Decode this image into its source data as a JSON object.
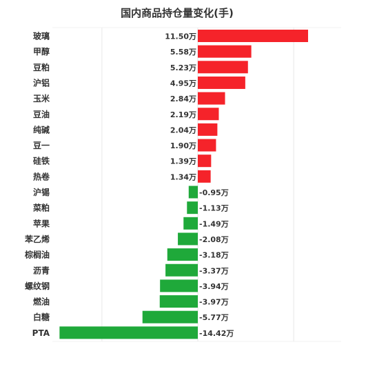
{
  "chart_data": {
    "type": "bar",
    "orientation": "horizontal",
    "title": "国内商品持仓量变化(手)",
    "categories": [
      "玻璃",
      "甲醇",
      "豆粕",
      "沪铝",
      "玉米",
      "豆油",
      "纯碱",
      "豆一",
      "硅铁",
      "热卷",
      "沪锡",
      "菜粕",
      "苹果",
      "苯乙烯",
      "棕榈油",
      "沥青",
      "螺纹钢",
      "燃油",
      "白糖",
      "PTA"
    ],
    "values": [
      115000,
      55800,
      52300,
      49500,
      28400,
      21900,
      20400,
      19000,
      13900,
      13400,
      -9500,
      -11300,
      -14900,
      -20800,
      -31800,
      -33700,
      -39400,
      -39700,
      -57700,
      -144200
    ],
    "value_labels": [
      "11.50万",
      "5.58万",
      "5.23万",
      "4.95万",
      "2.84万",
      "2.19万",
      "2.04万",
      "1.90万",
      "1.39万",
      "1.34万",
      "-0.95万",
      "-1.13万",
      "-1.49万",
      "-2.08万",
      "-3.18万",
      "-3.37万",
      "-3.94万",
      "-3.97万",
      "-5.77万",
      "-14.42万"
    ],
    "xlim": [
      -150000,
      130000
    ],
    "grid": true,
    "legend": "none",
    "colors": {
      "positive": "#f5232a",
      "negative": "#1fa93a",
      "grid": "#e6e6e6",
      "text": "#333333"
    }
  }
}
